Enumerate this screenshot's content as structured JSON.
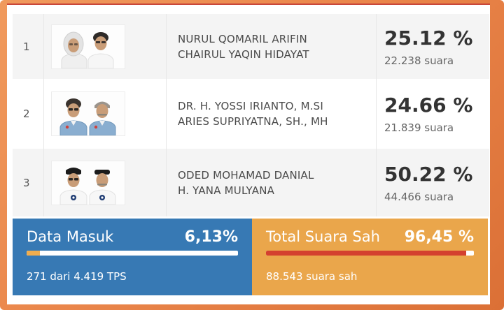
{
  "theme": {
    "frame_gradient_start": "#f09a5d",
    "frame_gradient_end": "#db7036",
    "panel_top_border_red": "#c9473a",
    "row_alt_background": "#f4f4f4",
    "blue_panel": "#3779b4",
    "orange_panel": "#eaa64b",
    "progress_track": "#ffffff",
    "progress_fill_orange": "#f0ad4e",
    "progress_fill_red": "#d4402f",
    "percent_text": "#333333",
    "name_text": "#4a4a4a"
  },
  "results_table": {
    "rows": [
      {
        "number": "1",
        "name1": "NURUL QOMARIL ARIFIN",
        "name2": "CHAIRUL YAQIN HIDAYAT",
        "percent": "25.12 %",
        "votes": "22.238 suara",
        "photo": "pair-woman-hijab-man-white-shirts"
      },
      {
        "number": "2",
        "name1": "DR. H. YOSSI IRIANTO, M.SI",
        "name2": "ARIES SUPRIYATNA, SH., MH",
        "percent": "24.66 %",
        "votes": "21.839 suara",
        "photo": "pair-two-men-blue-shirts"
      },
      {
        "number": "3",
        "name1": "ODED MOHAMAD DANIAL",
        "name2": "H. YANA MULYANA",
        "percent": "50.22 %",
        "votes": "44.466 suara",
        "photo": "pair-two-men-peci-caps-white-shirts"
      }
    ]
  },
  "panels": {
    "data_masuk": {
      "title": "Data Masuk",
      "percent_label": "6,13%",
      "progress_pct": 6.13,
      "detail": "271 dari 4.419 TPS"
    },
    "total_suara_sah": {
      "title": "Total Suara Sah",
      "percent_label": "96,45 %",
      "progress_pct": 96.45,
      "detail": "88.543 suara sah"
    }
  }
}
